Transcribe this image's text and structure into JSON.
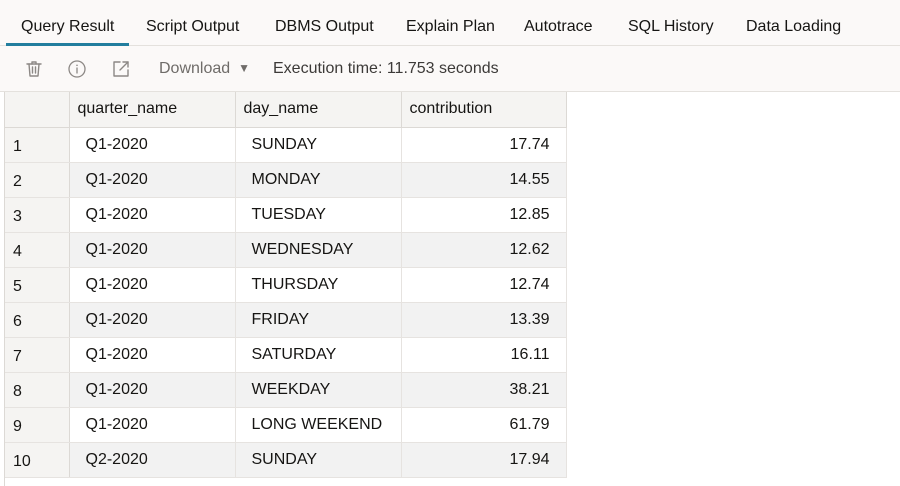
{
  "tabs": [
    {
      "label": "Query Result",
      "active": true
    },
    {
      "label": "Script Output",
      "active": false
    },
    {
      "label": "DBMS Output",
      "active": false
    },
    {
      "label": "Explain Plan",
      "active": false
    },
    {
      "label": "Autotrace",
      "active": false
    },
    {
      "label": "SQL History",
      "active": false
    },
    {
      "label": "Data Loading",
      "active": false
    }
  ],
  "toolbar": {
    "icons": [
      "trash-icon",
      "info-icon",
      "open-external-icon"
    ],
    "download_label": "Download",
    "execution_text": "Execution time: 11.753 seconds"
  },
  "grid": {
    "columns": [
      "quarter_name",
      "day_name",
      "contribution"
    ],
    "rows": [
      {
        "num": "1",
        "quarter_name": "Q1-2020",
        "day_name": "SUNDAY",
        "contribution": "17.74"
      },
      {
        "num": "2",
        "quarter_name": "Q1-2020",
        "day_name": "MONDAY",
        "contribution": "14.55"
      },
      {
        "num": "3",
        "quarter_name": "Q1-2020",
        "day_name": "TUESDAY",
        "contribution": "12.85"
      },
      {
        "num": "4",
        "quarter_name": "Q1-2020",
        "day_name": "WEDNESDAY",
        "contribution": "12.62"
      },
      {
        "num": "5",
        "quarter_name": "Q1-2020",
        "day_name": "THURSDAY",
        "contribution": "12.74"
      },
      {
        "num": "6",
        "quarter_name": "Q1-2020",
        "day_name": "FRIDAY",
        "contribution": "13.39"
      },
      {
        "num": "7",
        "quarter_name": "Q1-2020",
        "day_name": "SATURDAY",
        "contribution": "16.11"
      },
      {
        "num": "8",
        "quarter_name": "Q1-2020",
        "day_name": "WEEKDAY",
        "contribution": "38.21"
      },
      {
        "num": "9",
        "quarter_name": "Q1-2020",
        "day_name": "LONG WEEKEND",
        "contribution": "61.79"
      },
      {
        "num": "10",
        "quarter_name": "Q2-2020",
        "day_name": "SUNDAY",
        "contribution": "17.94"
      }
    ]
  },
  "colors": {
    "accent": "#227e9e",
    "row_stripe": "#f2f2f2",
    "header_bg": "#f5f4f2"
  }
}
